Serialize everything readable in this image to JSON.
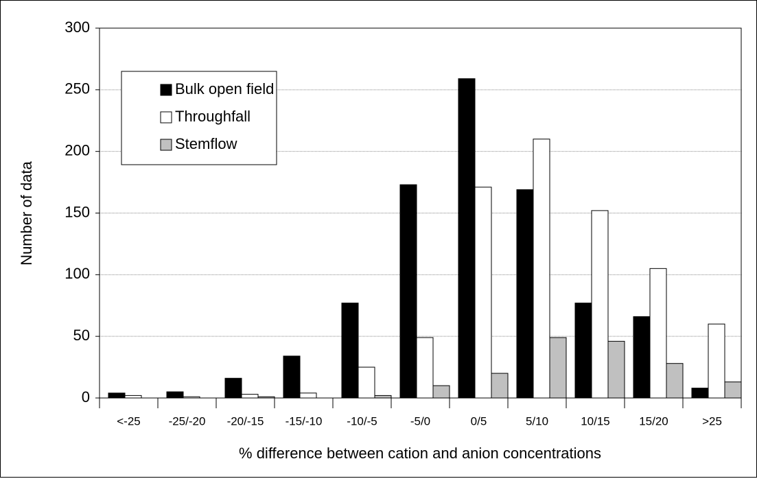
{
  "chart_data": {
    "type": "bar",
    "x_label": "% difference between cation and anion concentrations",
    "y_label": "Number of data",
    "categories": [
      "<-25",
      "-25/-20",
      "-20/-15",
      "-15/-10",
      "-10/-5",
      "-5/0",
      "0/5",
      "5/10",
      "10/15",
      "15/20",
      ">25"
    ],
    "series": [
      {
        "name": "Bulk open field",
        "color": "#000000",
        "values": [
          4,
          5,
          16,
          34,
          77,
          173,
          259,
          169,
          77,
          66,
          8
        ]
      },
      {
        "name": "Throughfall",
        "color": "#ffffff",
        "values": [
          2,
          1,
          3,
          4,
          25,
          49,
          171,
          210,
          152,
          105,
          60
        ]
      },
      {
        "name": "Stemflow",
        "color": "#c0c0c0",
        "values": [
          0,
          0,
          1,
          0,
          2,
          10,
          20,
          49,
          46,
          28,
          13
        ]
      }
    ],
    "ylim": [
      0,
      300
    ],
    "yticks": [
      0,
      50,
      100,
      150,
      200,
      250,
      300
    ],
    "grid": true,
    "legend": "upper left"
  }
}
